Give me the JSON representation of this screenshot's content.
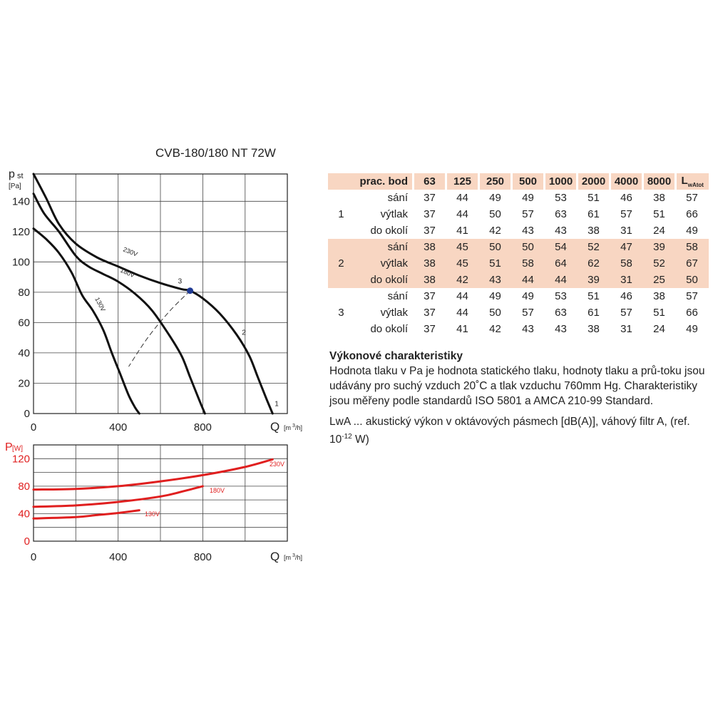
{
  "title": "CVB-180/180 NT 72W",
  "chart_data": [
    {
      "type": "line",
      "ylabel_main": "p",
      "ylabel_sub": "st",
      "yunit": "[Pa]",
      "xlabel": "Q",
      "xunit_pre": "[m",
      "xunit_sup": "3",
      "xunit_post": "/h]",
      "xlim": [
        0,
        1180
      ],
      "ylim": [
        0,
        158
      ],
      "xticks": [
        "0",
        "400",
        "800"
      ],
      "yticks": [
        "0",
        "20",
        "40",
        "60",
        "80",
        "100",
        "120",
        "140"
      ],
      "series": [
        {
          "name": "230V",
          "color": "#111111",
          "x": [
            0,
            60,
            120,
            200,
            300,
            400,
            500,
            600,
            700,
            740,
            800,
            880,
            960,
            1020,
            1060,
            1100,
            1130
          ],
          "y": [
            158,
            142,
            125,
            112,
            103,
            97,
            91,
            86,
            82,
            81,
            76,
            66,
            52,
            38,
            24,
            10,
            0
          ]
        },
        {
          "name": "180V",
          "color": "#111111",
          "x": [
            0,
            50,
            120,
            200,
            260,
            330,
            400,
            480,
            560,
            640,
            700,
            740,
            780,
            810
          ],
          "y": [
            145,
            132,
            120,
            104,
            97,
            92,
            87,
            79,
            68,
            52,
            38,
            24,
            10,
            0
          ]
        },
        {
          "name": "130V",
          "color": "#111111",
          "x": [
            0,
            60,
            120,
            180,
            230,
            280,
            330,
            370,
            410,
            450,
            480,
            500
          ],
          "y": [
            122,
            115,
            106,
            93,
            78,
            68,
            55,
            40,
            26,
            12,
            4,
            0
          ]
        }
      ],
      "operating_points": [
        {
          "label": "3",
          "x": 740,
          "y": 81
        }
      ],
      "curve_labels": [
        {
          "label": "2",
          "x": 985,
          "y": 52
        },
        {
          "label": "1",
          "x": 1140,
          "y": 5
        }
      ],
      "system_curve": {
        "x": [
          740,
          640,
          540,
          450
        ],
        "y": [
          81,
          67,
          50,
          31
        ]
      }
    },
    {
      "type": "line",
      "ylabel_main": "P",
      "yunit": "[W]",
      "xlabel": "Q",
      "xunit_pre": "[m",
      "xunit_sup": "3",
      "xunit_post": "/h]",
      "xlim": [
        0,
        1180
      ],
      "ylim": [
        0,
        140
      ],
      "xticks": [
        "0",
        "400",
        "800"
      ],
      "yticks": [
        "0",
        "40",
        "80",
        "120"
      ],
      "series": [
        {
          "name": "230V",
          "color": "#e01f1f",
          "x": [
            0,
            200,
            400,
            600,
            800,
            1000,
            1130
          ],
          "y": [
            75,
            76,
            80,
            87,
            96,
            108,
            119
          ]
        },
        {
          "name": "180V",
          "color": "#e01f1f",
          "x": [
            0,
            200,
            400,
            600,
            700,
            800
          ],
          "y": [
            50,
            52,
            57,
            65,
            72,
            80
          ]
        },
        {
          "name": "130V",
          "color": "#e01f1f",
          "x": [
            0,
            200,
            300,
            400,
            500
          ],
          "y": [
            33,
            35,
            38,
            41,
            45
          ]
        }
      ]
    }
  ],
  "table": {
    "header": [
      "prac. bod",
      "63",
      "125",
      "250",
      "500",
      "1000",
      "2000",
      "4000",
      "8000"
    ],
    "last_header_main": "L",
    "last_header_sub": "wAtot",
    "rows": [
      {
        "point": "",
        "label": "sání",
        "values": [
          "37",
          "44",
          "49",
          "49",
          "53",
          "51",
          "46",
          "38",
          "57"
        ]
      },
      {
        "point": "1",
        "label": "výtlak",
        "values": [
          "37",
          "44",
          "50",
          "57",
          "63",
          "61",
          "57",
          "51",
          "66"
        ]
      },
      {
        "point": "",
        "label": "do okolí",
        "values": [
          "37",
          "41",
          "42",
          "43",
          "43",
          "38",
          "31",
          "24",
          "49"
        ]
      },
      {
        "point": "",
        "label": "sání",
        "values": [
          "38",
          "45",
          "50",
          "50",
          "54",
          "52",
          "47",
          "39",
          "58"
        ]
      },
      {
        "point": "2",
        "label": "výtlak",
        "values": [
          "38",
          "45",
          "51",
          "58",
          "64",
          "62",
          "58",
          "52",
          "67"
        ]
      },
      {
        "point": "",
        "label": "do okolí",
        "values": [
          "38",
          "42",
          "43",
          "44",
          "44",
          "39",
          "31",
          "25",
          "50"
        ]
      },
      {
        "point": "",
        "label": "sání",
        "values": [
          "37",
          "44",
          "49",
          "49",
          "53",
          "51",
          "46",
          "38",
          "57"
        ]
      },
      {
        "point": "3",
        "label": "výtlak",
        "values": [
          "37",
          "44",
          "50",
          "57",
          "63",
          "61",
          "57",
          "51",
          "66"
        ]
      },
      {
        "point": "",
        "label": "do okolí",
        "values": [
          "37",
          "41",
          "42",
          "43",
          "43",
          "38",
          "31",
          "24",
          "49"
        ]
      }
    ]
  },
  "notes": {
    "heading": "Výkonové charakteristiky",
    "para1": "Hodnota tlaku v Pa je hodnota statického tlaku, hodnoty tlaku a prů-toku jsou udávány pro suchý vzduch 20˚C a tlak vzduchu 760mm Hg. Charakteristiky jsou měřeny podle standardů ISO 5801 a AMCA 210-99 Standard.",
    "para2_pre": "LwA ... akustický výkon v oktávových pásmech [dB(A)], váhový filtr A, (ref. 10",
    "para2_sup": "-12",
    "para2_post": " W)"
  }
}
